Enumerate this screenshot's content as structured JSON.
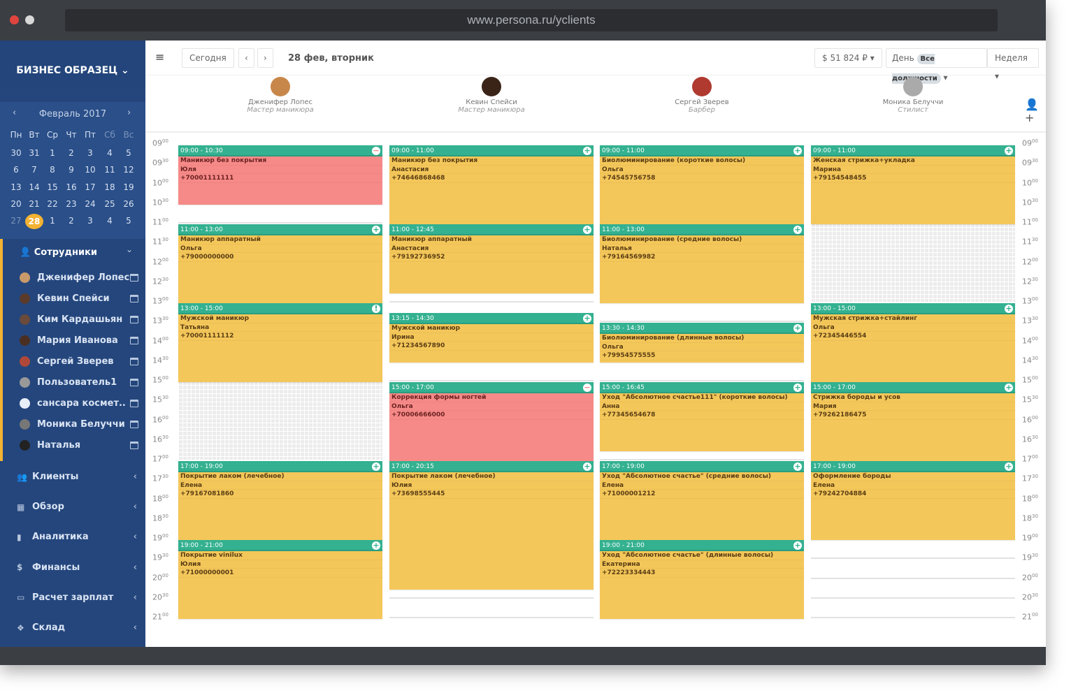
{
  "browser": {
    "url": "www.persona.ru/yclients",
    "dots": [
      "#e0443e",
      "#d8d8d8"
    ]
  },
  "sidebar": {
    "brand": "БИЗНЕС ОБРАЗЕЦ",
    "calendar": {
      "month": "Февраль 2017",
      "weekdays": [
        "Пн",
        "Вт",
        "Ср",
        "Чт",
        "Пт",
        "Сб",
        "Вс"
      ],
      "weeks": [
        [
          "30",
          "31",
          "1",
          "2",
          "3",
          "4",
          "5"
        ],
        [
          "6",
          "7",
          "8",
          "9",
          "10",
          "11",
          "12"
        ],
        [
          "13",
          "14",
          "15",
          "16",
          "17",
          "18",
          "19"
        ],
        [
          "20",
          "21",
          "22",
          "23",
          "24",
          "25",
          "26"
        ],
        [
          "27",
          "28",
          "1",
          "2",
          "3",
          "4",
          "5"
        ]
      ],
      "selected": "28"
    },
    "staff_title": "Сотрудники",
    "employees": [
      "Дженифер Лопес",
      "Кевин Спейси",
      "Ким Кардашьян",
      "Мария Иванова",
      "Сергей Зверев",
      "Пользователь1",
      "сансара космет..",
      "Моника Белуччи",
      "Наталья"
    ],
    "nav": [
      {
        "label": "Клиенты",
        "icon": "users-icon"
      },
      {
        "label": "Обзор",
        "icon": "grid-icon"
      },
      {
        "label": "Аналитика",
        "icon": "chart-icon"
      },
      {
        "label": "Финансы",
        "icon": "dollar-icon"
      },
      {
        "label": "Расчет зарплат",
        "icon": "card-icon"
      },
      {
        "label": "Склад",
        "icon": "cubes-icon"
      }
    ]
  },
  "toolbar": {
    "today": "Сегодня",
    "date": "28 фев, вторник",
    "revenue": "$ 51 824 ₽",
    "day": "День",
    "positions": "Все должности",
    "week": "Неделя"
  },
  "staff": [
    {
      "name": "Дженифер Лопес",
      "role": "Мастер маникюра"
    },
    {
      "name": "Кевин Спейси",
      "role": "Мастер маникюра"
    },
    {
      "name": "Сергей Зверев",
      "role": "Барбер"
    },
    {
      "name": "Моника Белуччи",
      "role": "Стилист"
    }
  ],
  "times": [
    "09",
    "09",
    "10",
    "10",
    "11",
    "11",
    "12",
    "12",
    "13",
    "13",
    "14",
    "14",
    "15",
    "15",
    "16",
    "16",
    "17",
    "17",
    "18",
    "18",
    "19",
    "19",
    "20",
    "20",
    "21"
  ],
  "colors": {
    "header": "#33b190",
    "appointment": "#f4c75a",
    "cancelled": "#f68a88",
    "sidebar": "#24467c",
    "accent": "#f3b232"
  },
  "columns": [
    {
      "appointments": [
        {
          "time": "09:00 - 10:30",
          "service": "Маникюр без покрытия",
          "client": "Юля",
          "phone": "+70001111111",
          "status": "red",
          "icon": "minus"
        },
        {
          "time": "11:00 - 13:00",
          "service": "Маникюр аппаратный",
          "client": "Ольга",
          "phone": "+79000000000",
          "icon": "plus"
        },
        {
          "time": "13:00 - 15:00",
          "service": "Мужской маникюр",
          "client": "Татьяна",
          "phone": "+70001111112",
          "icon": "exclamation"
        },
        {
          "time": "17:00 - 19:00",
          "service": "Покрытие лаком (лечебное)",
          "client": "Елена",
          "phone": "+79167081860",
          "icon": "plus"
        },
        {
          "time": "19:00 - 21:00",
          "service": "Покрытие vinilux",
          "client": "Юлия",
          "phone": "+71000000001",
          "icon": "plus"
        }
      ],
      "unavailable": [
        "15:00 - 17:00"
      ]
    },
    {
      "appointments": [
        {
          "time": "09:00 - 11:00",
          "service": "Маникюр без покрытия",
          "client": "Анастасия",
          "phone": "+74646868468",
          "icon": "plus"
        },
        {
          "time": "11:00 - 12:45",
          "service": "Маникюр аппаратный",
          "client": "Анастасия",
          "phone": "+79192736952",
          "icon": "plus"
        },
        {
          "time": "13:15 - 14:30",
          "service": "Мужской маникюр",
          "client": "Ирина",
          "phone": "+71234567890",
          "icon": "plus"
        },
        {
          "time": "15:00 - 17:00",
          "service": "Коррекция формы ногтей",
          "client": "Ольга",
          "phone": "+70006666000",
          "status": "red",
          "icon": "minus"
        },
        {
          "time": "17:00 - 20:15",
          "service": "Покрытие лаком (лечебное)",
          "client": "Юлия",
          "phone": "+73698555445",
          "icon": "plus"
        }
      ],
      "unavailable": []
    },
    {
      "appointments": [
        {
          "time": "09:00 - 11:00",
          "service": "Биолюминирование (короткие волосы)",
          "client": "Ольга",
          "phone": "+74545756758",
          "icon": "plus"
        },
        {
          "time": "11:00 - 13:00",
          "service": "Биолюминирование (средние волосы)",
          "client": "Наталья",
          "phone": "+79164569982",
          "icon": "plus"
        },
        {
          "time": "13:30 - 14:30",
          "service": "Биолюминирование (длинные волосы)",
          "client": "Ольга",
          "phone": "+79954575555",
          "icon": "plus"
        },
        {
          "time": "15:00 - 16:45",
          "service": "Уход \"Абсолютное счастье111\" (короткие волосы)",
          "client": "Анна",
          "phone": "+77345654678",
          "icon": "plus"
        },
        {
          "time": "17:00 - 19:00",
          "service": "Уход \"Абсолютное счастье\" (средние волосы)",
          "client": "Елена",
          "phone": "+71000001212",
          "icon": "plus"
        },
        {
          "time": "19:00 - 21:00",
          "service": "Уход \"Абсолютное счастье\" (длинные волосы)",
          "client": "Екатерина",
          "phone": "+72223334443",
          "icon": "plus"
        }
      ],
      "unavailable": []
    },
    {
      "appointments": [
        {
          "time": "09:00 - 11:00",
          "service": "Женская стрижка+укладка",
          "client": "Марина",
          "phone": "+79154548455",
          "icon": "plus"
        },
        {
          "time": "13:00 - 15:00",
          "service": "Мужская стрижка+стайлинг",
          "client": "Ольга",
          "phone": "+72345446554",
          "icon": "plus"
        },
        {
          "time": "15:00 - 17:00",
          "service": "Стрижка бороды и усов",
          "client": "Мария",
          "phone": "+79262186475",
          "icon": "plus"
        },
        {
          "time": "17:00 - 19:00",
          "service": "Оформление бороды",
          "client": "Елена",
          "phone": "+79242704884",
          "icon": "plus"
        }
      ],
      "unavailable": [
        "11:00 - 13:00"
      ]
    }
  ]
}
